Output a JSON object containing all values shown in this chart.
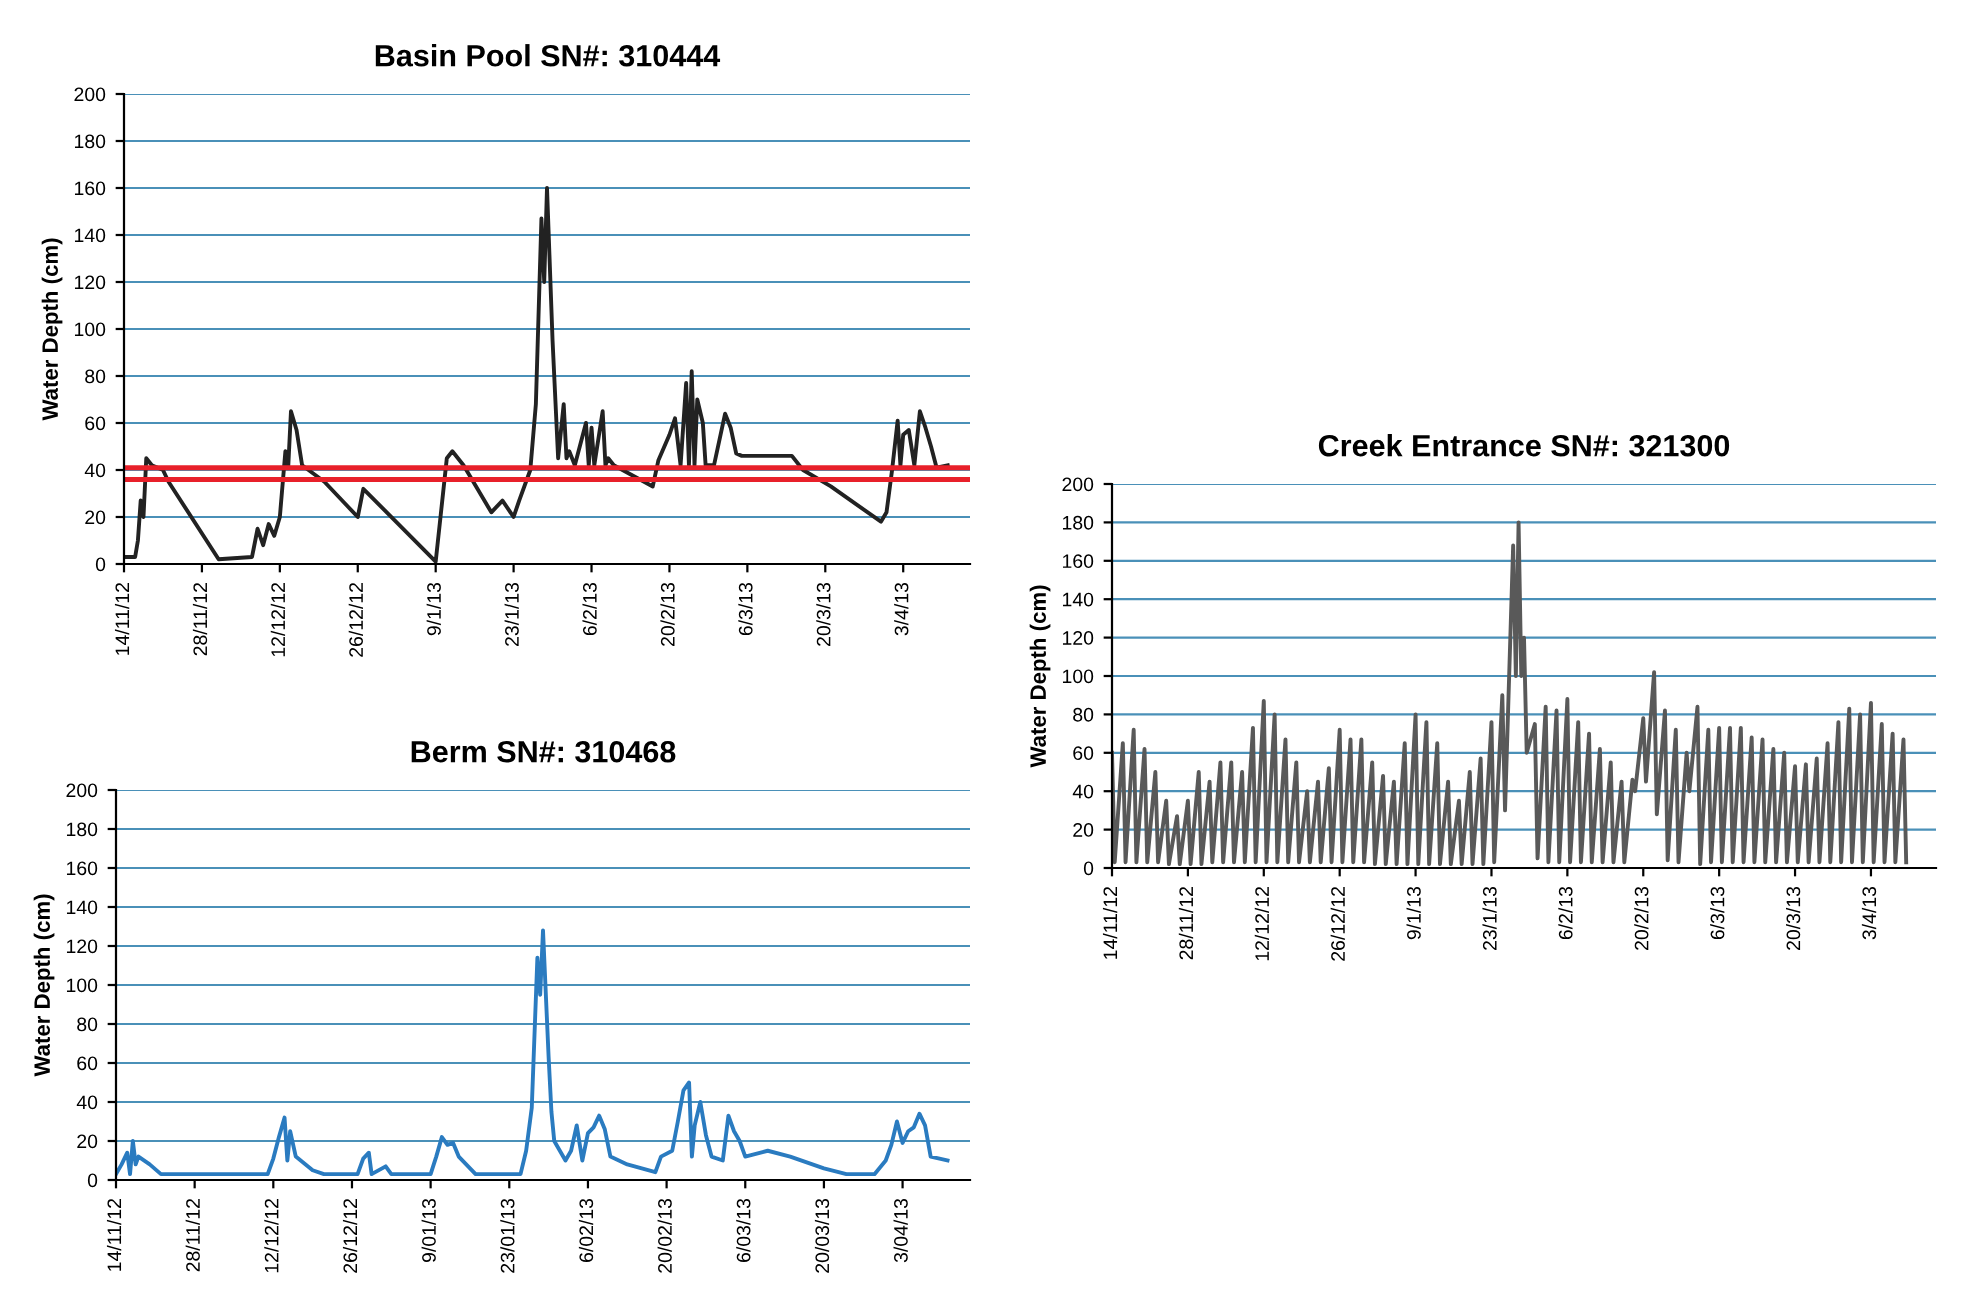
{
  "chart_data": [
    {
      "type": "line",
      "title": "Basin Pool SN#: 310444",
      "ylabel": "Water Depth (cm)",
      "grid": "y",
      "x": [
        "2012-11-14",
        "2012-11-16",
        "2012-11-16T12:00",
        "2012-11-17",
        "2012-11-17T12:00",
        "2012-11-18",
        "2012-11-19",
        "2012-11-21",
        "2012-11-22",
        "2012-12-01",
        "2012-12-07",
        "2012-12-08",
        "2012-12-09",
        "2012-12-10",
        "2012-12-11",
        "2012-12-12",
        "2012-12-13",
        "2012-12-13T12:00",
        "2012-12-14",
        "2012-12-15",
        "2012-12-16",
        "2012-12-20",
        "2012-12-24",
        "2012-12-26",
        "2012-12-27",
        "2013-01-09",
        "2013-01-11",
        "2013-01-12",
        "2013-01-14",
        "2013-01-19",
        "2013-01-21",
        "2013-01-23",
        "2013-01-24",
        "2013-01-26",
        "2013-01-27",
        "2013-01-28",
        "2013-01-28T12:00",
        "2013-01-29",
        "2013-01-30",
        "2013-01-31",
        "2013-02-01",
        "2013-02-01T12:00",
        "2013-02-02",
        "2013-02-03",
        "2013-02-05",
        "2013-02-05T12:00",
        "2013-02-06",
        "2013-02-06T12:00",
        "2013-02-08",
        "2013-02-08T12:00",
        "2013-02-09",
        "2013-02-10",
        "2013-02-17",
        "2013-02-18",
        "2013-02-20",
        "2013-02-21",
        "2013-02-22",
        "2013-02-23",
        "2013-02-23T12:00",
        "2013-02-24",
        "2013-02-24T12:00",
        "2013-02-25",
        "2013-02-26",
        "2013-02-26T12:00",
        "2013-02-28",
        "2013-03-02",
        "2013-03-03",
        "2013-03-04",
        "2013-03-05",
        "2013-03-14",
        "2013-03-16",
        "2013-03-21",
        "2013-03-30",
        "2013-03-31",
        "2013-04-01",
        "2013-04-02",
        "2013-04-02T12:00",
        "2013-04-03",
        "2013-04-04",
        "2013-04-05",
        "2013-04-06",
        "2013-04-07",
        "2013-04-08",
        "2013-04-09",
        "2013-04-11"
      ],
      "series": [
        {
          "color": "#222222",
          "values": [
            3,
            3,
            10,
            27,
            20,
            45,
            42,
            40,
            35,
            2,
            3,
            15,
            8,
            17,
            12,
            20,
            48,
            41,
            65,
            57,
            42,
            35,
            25,
            20,
            32,
            1,
            45,
            48,
            42,
            22,
            27,
            20,
            27,
            40,
            68,
            147,
            120,
            160,
            95,
            45,
            68,
            45,
            48,
            42,
            60,
            42,
            58,
            42,
            65,
            42,
            45,
            42,
            33,
            44,
            55,
            62,
            42,
            77,
            42,
            82,
            42,
            70,
            60,
            42,
            42,
            64,
            58,
            47,
            46,
            46,
            40,
            33,
            18,
            22,
            40,
            61,
            42,
            55,
            57,
            42,
            65,
            58,
            50,
            41,
            42
          ]
        }
      ],
      "xlim": [
        "2012-11-14",
        "2013-04-15"
      ],
      "ylim": [
        0,
        200
      ],
      "yticks": [
        0,
        20,
        40,
        60,
        80,
        100,
        120,
        140,
        160,
        180,
        200
      ],
      "xticks": [
        {
          "value": "2012-11-14",
          "label": "14/11/12"
        },
        {
          "value": "2012-11-28",
          "label": "28/11/12"
        },
        {
          "value": "2012-12-12",
          "label": "12/12/12"
        },
        {
          "value": "2012-12-26",
          "label": "26/12/12"
        },
        {
          "value": "2013-01-09",
          "label": "9/1/13"
        },
        {
          "value": "2013-01-23",
          "label": "23/1/13"
        },
        {
          "value": "2013-02-06",
          "label": "6/2/13"
        },
        {
          "value": "2013-02-20",
          "label": "20/2/13"
        },
        {
          "value": "2013-03-06",
          "label": "6/3/13"
        },
        {
          "value": "2013-03-20",
          "label": "20/3/13"
        },
        {
          "value": "2013-04-03",
          "label": "3/4/13"
        }
      ],
      "ref_lines": [
        {
          "axis": "y",
          "value": 41,
          "color": "#e8202a"
        },
        {
          "axis": "y",
          "value": 36,
          "color": "#e8202a"
        }
      ]
    },
    {
      "type": "line",
      "title": "Creek Entrance SN#: 321300",
      "ylabel": "Water Depth (cm)",
      "grid": "y",
      "x": [
        "2012-11-14",
        "2012-11-14T12:00",
        "2012-11-16",
        "2012-11-16T12:00",
        "2012-11-18",
        "2012-11-18T12:00",
        "2012-11-20",
        "2012-11-20T12:00",
        "2012-11-22",
        "2012-11-22T12:00",
        "2012-11-24",
        "2012-11-24T12:00",
        "2012-11-26",
        "2012-11-26T12:00",
        "2012-11-28",
        "2012-11-28T12:00",
        "2012-11-30",
        "2012-11-30T12:00",
        "2012-12-02",
        "2012-12-02T12:00",
        "2012-12-04",
        "2012-12-04T12:00",
        "2012-12-06",
        "2012-12-06T12:00",
        "2012-12-08",
        "2012-12-08T12:00",
        "2012-12-10",
        "2012-12-10T12:00",
        "2012-12-12",
        "2012-12-12T12:00",
        "2012-12-14",
        "2012-12-14T12:00",
        "2012-12-16",
        "2012-12-16T12:00",
        "2012-12-18",
        "2012-12-18T12:00",
        "2012-12-20",
        "2012-12-20T12:00",
        "2012-12-22",
        "2012-12-22T12:00",
        "2012-12-24",
        "2012-12-24T12:00",
        "2012-12-26",
        "2012-12-26T12:00",
        "2012-12-28",
        "2012-12-28T12:00",
        "2012-12-30",
        "2012-12-30T12:00",
        "2013-01-01",
        "2013-01-01T12:00",
        "2013-01-03",
        "2013-01-03T12:00",
        "2013-01-05",
        "2013-01-05T12:00",
        "2013-01-07",
        "2013-01-07T12:00",
        "2013-01-09",
        "2013-01-09T12:00",
        "2013-01-11",
        "2013-01-11T12:00",
        "2013-01-13",
        "2013-01-13T12:00",
        "2013-01-15",
        "2013-01-15T12:00",
        "2013-01-17",
        "2013-01-17T12:00",
        "2013-01-19",
        "2013-01-19T12:00",
        "2013-01-21",
        "2013-01-21T12:00",
        "2013-01-23",
        "2013-01-23T12:00",
        "2013-01-25",
        "2013-01-25T12:00",
        "2013-01-27",
        "2013-01-27T12:00",
        "2013-01-28",
        "2013-01-28T12:00",
        "2013-01-29",
        "2013-01-29T12:00",
        "2013-01-31",
        "2013-01-31T12:00",
        "2013-02-02",
        "2013-02-02T12:00",
        "2013-02-04",
        "2013-02-04T12:00",
        "2013-02-06",
        "2013-02-06T12:00",
        "2013-02-08",
        "2013-02-08T12:00",
        "2013-02-10",
        "2013-02-10T12:00",
        "2013-02-12",
        "2013-02-12T12:00",
        "2013-02-14",
        "2013-02-14T12:00",
        "2013-02-16",
        "2013-02-16T12:00",
        "2013-02-18",
        "2013-02-18T12:00",
        "2013-02-20",
        "2013-02-20T12:00",
        "2013-02-22",
        "2013-02-22T12:00",
        "2013-02-24",
        "2013-02-24T12:00",
        "2013-02-26",
        "2013-02-26T12:00",
        "2013-02-28",
        "2013-02-28T12:00",
        "2013-03-02",
        "2013-03-02T12:00",
        "2013-03-04",
        "2013-03-04T12:00",
        "2013-03-06",
        "2013-03-06T12:00",
        "2013-03-08",
        "2013-03-08T12:00",
        "2013-03-10",
        "2013-03-10T12:00",
        "2013-03-12",
        "2013-03-12T12:00",
        "2013-03-14",
        "2013-03-14T12:00",
        "2013-03-16",
        "2013-03-16T12:00",
        "2013-03-18",
        "2013-03-18T12:00",
        "2013-03-20",
        "2013-03-20T12:00",
        "2013-03-22",
        "2013-03-22T12:00",
        "2013-03-24",
        "2013-03-24T12:00",
        "2013-03-26",
        "2013-03-26T12:00",
        "2013-03-28",
        "2013-03-28T12:00",
        "2013-03-30",
        "2013-03-30T12:00",
        "2013-04-01",
        "2013-04-01T12:00",
        "2013-04-03",
        "2013-04-03T12:00",
        "2013-04-05",
        "2013-04-05T12:00",
        "2013-04-07",
        "2013-04-07T12:00",
        "2013-04-09",
        "2013-04-09T12:00"
      ],
      "series": [
        {
          "color": "#595959",
          "values": [
            60,
            3,
            65,
            3,
            72,
            3,
            62,
            3,
            50,
            3,
            35,
            2,
            27,
            2,
            35,
            2,
            50,
            2,
            45,
            3,
            55,
            3,
            55,
            3,
            50,
            3,
            73,
            3,
            87,
            3,
            80,
            3,
            67,
            3,
            55,
            3,
            40,
            3,
            45,
            3,
            52,
            3,
            72,
            3,
            67,
            3,
            67,
            3,
            55,
            2,
            48,
            2,
            45,
            2,
            65,
            2,
            80,
            2,
            76,
            2,
            65,
            2,
            45,
            2,
            35,
            2,
            50,
            2,
            57,
            2,
            76,
            3,
            90,
            30,
            168,
            100,
            180,
            100,
            120,
            60,
            75,
            5,
            84,
            3,
            82,
            3,
            88,
            3,
            76,
            3,
            70,
            3,
            62,
            3,
            55,
            3,
            45,
            3,
            46,
            40,
            78,
            45,
            102,
            28,
            82,
            4,
            72,
            3,
            60,
            40,
            84,
            2,
            72,
            3,
            73,
            3,
            73,
            3,
            73,
            3,
            68,
            3,
            67,
            3,
            62,
            3,
            60,
            3,
            53,
            3,
            54,
            3,
            57,
            3,
            65,
            3,
            76,
            3,
            83,
            3,
            80,
            3,
            86,
            3,
            75,
            3,
            70,
            3,
            67,
            3
          ]
        }
      ],
      "xlim": [
        "2012-11-14",
        "2013-04-15"
      ],
      "ylim": [
        0,
        200
      ],
      "yticks": [
        0,
        20,
        40,
        60,
        80,
        100,
        120,
        140,
        160,
        180,
        200
      ],
      "xticks": [
        {
          "value": "2012-11-14",
          "label": "14/11/12"
        },
        {
          "value": "2012-11-28",
          "label": "28/11/12"
        },
        {
          "value": "2012-12-12",
          "label": "12/12/12"
        },
        {
          "value": "2012-12-26",
          "label": "26/12/12"
        },
        {
          "value": "2013-01-09",
          "label": "9/1/13"
        },
        {
          "value": "2013-01-23",
          "label": "23/1/13"
        },
        {
          "value": "2013-02-06",
          "label": "6/2/13"
        },
        {
          "value": "2013-02-20",
          "label": "20/2/13"
        },
        {
          "value": "2013-03-06",
          "label": "6/3/13"
        },
        {
          "value": "2013-03-20",
          "label": "20/3/13"
        },
        {
          "value": "2013-04-03",
          "label": "3/4/13"
        }
      ]
    },
    {
      "type": "line",
      "title": "Berm SN#: 310468",
      "ylabel": "Water Depth (cm)",
      "grid": "y",
      "x": [
        "2012-11-14",
        "2012-11-15",
        "2012-11-16",
        "2012-11-16T12:00",
        "2012-11-17",
        "2012-11-17T12:00",
        "2012-11-18",
        "2012-11-20",
        "2012-11-22",
        "2012-12-11",
        "2012-12-12",
        "2012-12-13",
        "2012-12-14",
        "2012-12-14T12:00",
        "2012-12-15",
        "2012-12-16",
        "2012-12-19",
        "2012-12-21",
        "2012-12-27",
        "2012-12-28",
        "2012-12-29",
        "2012-12-29T12:00",
        "2013-01-01",
        "2013-01-02",
        "2013-01-09",
        "2013-01-10",
        "2013-01-11",
        "2013-01-12",
        "2013-01-13",
        "2013-01-14",
        "2013-01-17",
        "2013-01-25",
        "2013-01-26",
        "2013-01-27",
        "2013-01-28",
        "2013-01-28T12:00",
        "2013-01-29",
        "2013-01-30",
        "2013-01-30T12:00",
        "2013-01-31",
        "2013-02-02",
        "2013-02-03",
        "2013-02-04",
        "2013-02-05",
        "2013-02-06",
        "2013-02-07",
        "2013-02-08",
        "2013-02-09",
        "2013-02-10",
        "2013-02-13",
        "2013-02-18",
        "2013-02-19",
        "2013-02-21",
        "2013-02-22",
        "2013-02-23",
        "2013-02-24",
        "2013-02-24T12:00",
        "2013-02-25",
        "2013-02-26",
        "2013-02-27",
        "2013-02-28",
        "2013-03-02",
        "2013-03-03",
        "2013-03-04",
        "2013-03-05",
        "2013-03-06",
        "2013-03-10",
        "2013-03-14",
        "2013-03-20",
        "2013-03-24",
        "2013-03-29",
        "2013-03-31",
        "2013-04-01",
        "2013-04-02",
        "2013-04-03",
        "2013-04-04",
        "2013-04-05",
        "2013-04-06",
        "2013-04-07",
        "2013-04-08",
        "2013-04-11"
      ],
      "series": [
        {
          "color": "#2a7bc0",
          "values": [
            3,
            8,
            14,
            3,
            20,
            8,
            12,
            8,
            3,
            3,
            11,
            22,
            32,
            10,
            25,
            12,
            5,
            3,
            3,
            11,
            14,
            3,
            7,
            3,
            3,
            12,
            22,
            18,
            19,
            12,
            3,
            3,
            15,
            37,
            114,
            95,
            128,
            63,
            35,
            20,
            10,
            15,
            28,
            10,
            24,
            27,
            33,
            26,
            12,
            8,
            4,
            12,
            15,
            30,
            46,
            50,
            12,
            28,
            40,
            23,
            12,
            10,
            33,
            25,
            20,
            12,
            15,
            12,
            6,
            3,
            3,
            10,
            18,
            30,
            19,
            25,
            27,
            34,
            28,
            12,
            10
          ]
        }
      ],
      "xlim": [
        "2012-11-14",
        "2013-04-15"
      ],
      "ylim": [
        0,
        200
      ],
      "yticks": [
        0,
        20,
        40,
        60,
        80,
        100,
        120,
        140,
        160,
        180,
        200
      ],
      "xticks": [
        {
          "value": "2012-11-14",
          "label": "14/11/12"
        },
        {
          "value": "2012-11-28",
          "label": "28/11/12"
        },
        {
          "value": "2012-12-12",
          "label": "12/12/12"
        },
        {
          "value": "2012-12-26",
          "label": "26/12/12"
        },
        {
          "value": "2013-01-09",
          "label": "9/01/13"
        },
        {
          "value": "2013-01-23",
          "label": "23/01/13"
        },
        {
          "value": "2013-02-06",
          "label": "6/02/13"
        },
        {
          "value": "2013-02-20",
          "label": "20/02/13"
        },
        {
          "value": "2013-03-06",
          "label": "6/03/13"
        },
        {
          "value": "2013-03-20",
          "label": "20/03/13"
        },
        {
          "value": "2013-04-03",
          "label": "3/04/13"
        }
      ]
    }
  ]
}
